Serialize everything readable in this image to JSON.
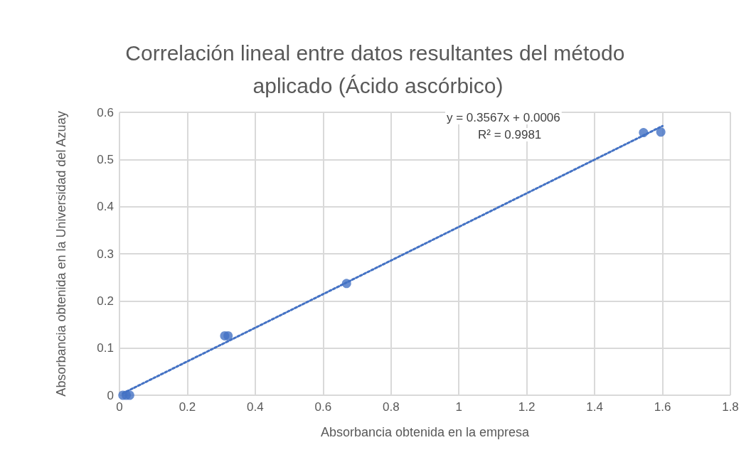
{
  "chart_data": {
    "type": "scatter",
    "title": "Correlación lineal entre datos resultantes del método aplicado (Ácido ascórbico)",
    "xlabel": "Absorbancia obtenida en la empresa",
    "ylabel": "Absorbancia obtenida en la Universidad del Azuay",
    "annotations": [
      "y = 0.3567x + 0.0006",
      "R² = 0.9981"
    ],
    "xlim": [
      0,
      1.8
    ],
    "xticks": [
      0,
      0.2,
      0.4,
      0.6,
      0.8,
      1,
      1.2,
      1.4,
      1.6,
      1.8
    ],
    "ylim": [
      0,
      0.6
    ],
    "yticks": [
      0,
      0.1,
      0.2,
      0.3,
      0.4,
      0.5,
      0.6
    ],
    "grid": true,
    "marker": "circle",
    "series": [
      {
        "color": "#4472c4",
        "x": [
          0.01,
          0.02,
          0.03,
          0.31,
          0.32,
          0.669,
          1.544,
          1.595
        ],
        "values": [
          0,
          0,
          0,
          0.126,
          0.126,
          0.237,
          0.557,
          0.558
        ]
      },
      {
        "type": "line",
        "color": "#4472c4",
        "line_style": "dotted",
        "marker": "none",
        "x": [
          0.01,
          1.6
        ],
        "values": [
          0.004,
          0.571
        ]
      }
    ]
  }
}
